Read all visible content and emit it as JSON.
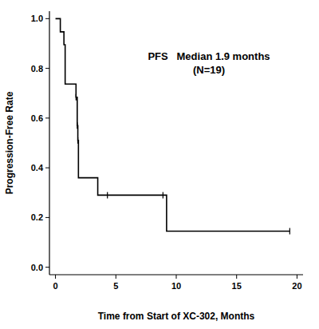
{
  "chart_data": {
    "type": "line",
    "x_label": "Time from Start of XC-302, Months",
    "y_label": "Progression-Free Rate",
    "annotations": [
      "PFS   Median 1.9 months",
      "(N=19)"
    ],
    "xlim": [
      -0.5,
      20.5
    ],
    "xticks": [
      0,
      5,
      10,
      15,
      20
    ],
    "ylim": [
      -0.03,
      1.03
    ],
    "yticks": [
      {
        "value": 0,
        "label": "0.0"
      },
      {
        "value": 0.2,
        "label": "0.2"
      },
      {
        "value": 0.4,
        "label": "0.4"
      },
      {
        "value": 0.6,
        "label": "0.6"
      },
      {
        "value": 0.8,
        "label": "0.8"
      },
      {
        "value": 1,
        "label": "1.0"
      }
    ],
    "grid": false,
    "series": [
      {
        "type": "line",
        "line_style": "step",
        "color": "#000000",
        "x": [
          0,
          0.4,
          0.7,
          0.8,
          1.7,
          1.8,
          1.85,
          1.9,
          3.5,
          9.2,
          19.4
        ],
        "values": [
          1,
          0.947,
          0.895,
          0.737,
          0.684,
          0.57,
          0.51,
          0.36,
          0.29,
          0.145,
          0.145
        ]
      },
      {
        "type": "scatter",
        "marker": "tick",
        "color": "#000000",
        "x": [
          1.7,
          1.8,
          1.85,
          4.3,
          8.9,
          19.4
        ],
        "values": [
          0.684,
          0.57,
          0.51,
          0.29,
          0.29,
          0.145
        ]
      }
    ]
  }
}
